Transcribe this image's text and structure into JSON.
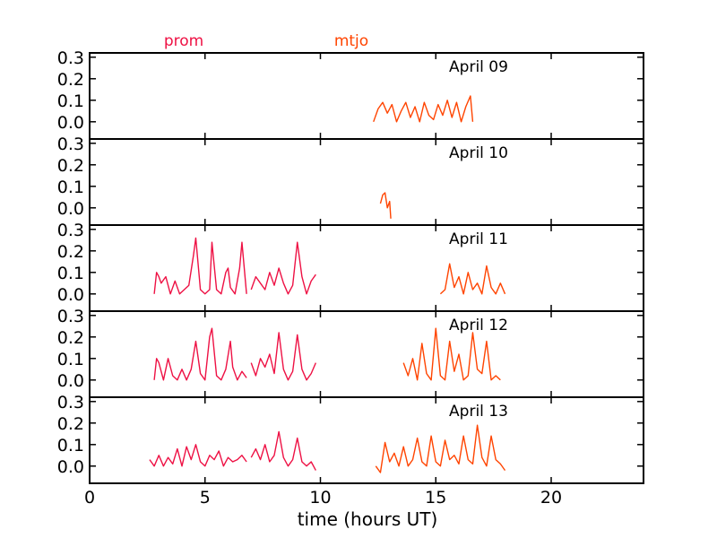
{
  "chart_data": {
    "type": "line",
    "xlabel": "time (hours UT)",
    "xlim": [
      0,
      24
    ],
    "xticks": [
      0,
      5,
      10,
      15,
      20
    ],
    "ylim": [
      -0.08,
      0.32
    ],
    "yticks": [
      0.0,
      0.1,
      0.2,
      0.3
    ],
    "ytick_labels": [
      "0.0",
      "0.1",
      "0.2",
      "0.3"
    ],
    "grid": false,
    "legend": {
      "placement": "top",
      "entries": [
        {
          "name": "prom",
          "color": "#ee1144"
        },
        {
          "name": "mtjo",
          "color": "#ff4400"
        }
      ]
    },
    "panels": [
      {
        "label": "April 09",
        "series": [
          {
            "name": "mtjo",
            "color": "#ff4400",
            "x": [
              12.3,
              12.5,
              12.7,
              12.9,
              13.1,
              13.3,
              13.5,
              13.7,
              13.9,
              14.1,
              14.3,
              14.5,
              14.7,
              14.9,
              15.1,
              15.3,
              15.5,
              15.7,
              15.9,
              16.1,
              16.3,
              16.5,
              16.6
            ],
            "y": [
              0.0,
              0.06,
              0.09,
              0.04,
              0.08,
              0.0,
              0.05,
              0.09,
              0.02,
              0.07,
              0.0,
              0.09,
              0.03,
              0.01,
              0.08,
              0.03,
              0.1,
              0.02,
              0.09,
              0.0,
              0.07,
              0.12,
              0.0
            ]
          }
        ]
      },
      {
        "label": "April 10",
        "series": [
          {
            "name": "mtjo",
            "color": "#ff4400",
            "x": [
              12.6,
              12.7,
              12.8,
              12.9,
              13.0,
              13.05
            ],
            "y": [
              0.02,
              0.06,
              0.07,
              0.0,
              0.03,
              -0.05
            ]
          }
        ]
      },
      {
        "label": "April 11",
        "series": [
          {
            "name": "prom",
            "color": "#ee1144",
            "x": [
              2.8,
              2.9,
              3.0,
              3.1,
              3.3,
              3.5,
              3.7,
              3.9,
              4.1,
              4.3,
              4.5,
              4.6,
              4.8,
              5.0,
              5.2,
              5.3,
              5.5,
              5.7,
              5.9,
              6.0,
              6.1,
              6.3,
              6.5,
              6.6,
              6.8
            ],
            "y": [
              0.0,
              0.1,
              0.08,
              0.05,
              0.08,
              0.0,
              0.06,
              0.0,
              0.02,
              0.04,
              0.18,
              0.26,
              0.02,
              0.0,
              0.02,
              0.24,
              0.02,
              0.0,
              0.1,
              0.12,
              0.03,
              0.0,
              0.12,
              0.24,
              0.0
            ]
          },
          {
            "name": "prom",
            "color": "#ee1144",
            "x": [
              7.0,
              7.2,
              7.4,
              7.6,
              7.8,
              8.0,
              8.2,
              8.4,
              8.6,
              8.8,
              9.0,
              9.2,
              9.4,
              9.6,
              9.8
            ],
            "y": [
              0.02,
              0.08,
              0.05,
              0.02,
              0.1,
              0.04,
              0.12,
              0.05,
              0.0,
              0.04,
              0.24,
              0.08,
              0.0,
              0.06,
              0.09
            ]
          },
          {
            "name": "mtjo",
            "color": "#ff4400",
            "x": [
              15.2,
              15.4,
              15.6,
              15.8,
              16.0,
              16.2,
              16.4,
              16.6,
              16.8,
              17.0,
              17.2,
              17.4,
              17.6,
              17.8,
              18.0
            ],
            "y": [
              0.0,
              0.02,
              0.14,
              0.03,
              0.08,
              0.0,
              0.1,
              0.02,
              0.05,
              0.0,
              0.13,
              0.03,
              0.0,
              0.05,
              0.0
            ]
          }
        ]
      },
      {
        "label": "April 12",
        "series": [
          {
            "name": "prom",
            "color": "#ee1144",
            "x": [
              2.8,
              2.9,
              3.0,
              3.2,
              3.4,
              3.6,
              3.8,
              4.0,
              4.2,
              4.4,
              4.6,
              4.8,
              5.0,
              5.2,
              5.3,
              5.5,
              5.7,
              5.9,
              6.1,
              6.2,
              6.4,
              6.6,
              6.8
            ],
            "y": [
              0.0,
              0.1,
              0.08,
              0.0,
              0.1,
              0.02,
              0.0,
              0.05,
              0.0,
              0.05,
              0.18,
              0.03,
              0.0,
              0.2,
              0.24,
              0.02,
              0.0,
              0.05,
              0.18,
              0.06,
              0.0,
              0.04,
              0.01
            ]
          },
          {
            "name": "prom",
            "color": "#ee1144",
            "x": [
              7.0,
              7.2,
              7.4,
              7.6,
              7.8,
              8.0,
              8.2,
              8.4,
              8.6,
              8.8,
              9.0,
              9.2,
              9.4,
              9.6,
              9.8
            ],
            "y": [
              0.08,
              0.02,
              0.1,
              0.06,
              0.12,
              0.03,
              0.22,
              0.05,
              0.0,
              0.04,
              0.21,
              0.05,
              0.0,
              0.03,
              0.08
            ]
          },
          {
            "name": "mtjo",
            "color": "#ff4400",
            "x": [
              13.6,
              13.8,
              14.0,
              14.2,
              14.4,
              14.6,
              14.8,
              15.0,
              15.2,
              15.4,
              15.6,
              15.8,
              16.0,
              16.2,
              16.4,
              16.6,
              16.8,
              17.0,
              17.2,
              17.4,
              17.6,
              17.8
            ],
            "y": [
              0.08,
              0.02,
              0.1,
              0.0,
              0.17,
              0.03,
              0.0,
              0.24,
              0.02,
              0.0,
              0.18,
              0.04,
              0.12,
              0.0,
              0.02,
              0.22,
              0.05,
              0.03,
              0.18,
              0.0,
              0.02,
              0.0
            ]
          }
        ]
      },
      {
        "label": "April 13",
        "series": [
          {
            "name": "prom",
            "color": "#ee1144",
            "x": [
              2.6,
              2.8,
              3.0,
              3.2,
              3.4,
              3.6,
              3.8,
              4.0,
              4.2,
              4.4,
              4.6,
              4.8,
              5.0,
              5.2,
              5.4,
              5.6,
              5.8,
              6.0,
              6.2,
              6.4,
              6.6,
              6.8
            ],
            "y": [
              0.03,
              0.0,
              0.05,
              0.0,
              0.04,
              0.01,
              0.08,
              0.0,
              0.09,
              0.03,
              0.1,
              0.02,
              0.0,
              0.05,
              0.03,
              0.07,
              0.0,
              0.04,
              0.02,
              0.03,
              0.05,
              0.02
            ]
          },
          {
            "name": "prom",
            "color": "#ee1144",
            "x": [
              7.0,
              7.2,
              7.4,
              7.6,
              7.8,
              8.0,
              8.2,
              8.4,
              8.6,
              8.8,
              9.0,
              9.2,
              9.4,
              9.6,
              9.8
            ],
            "y": [
              0.04,
              0.08,
              0.03,
              0.1,
              0.02,
              0.05,
              0.16,
              0.04,
              0.0,
              0.03,
              0.13,
              0.02,
              0.0,
              0.02,
              -0.02
            ]
          },
          {
            "name": "mtjo",
            "color": "#ff4400",
            "x": [
              12.4,
              12.6,
              12.8,
              13.0,
              13.2,
              13.4,
              13.6,
              13.8,
              14.0,
              14.2,
              14.4,
              14.6,
              14.8,
              15.0,
              15.2,
              15.4,
              15.6,
              15.8,
              16.0,
              16.2,
              16.4,
              16.6,
              16.8,
              17.0,
              17.2,
              17.4,
              17.6,
              17.8,
              18.0
            ],
            "y": [
              0.0,
              -0.03,
              0.11,
              0.02,
              0.06,
              0.0,
              0.09,
              0.0,
              0.03,
              0.13,
              0.02,
              0.0,
              0.14,
              0.02,
              0.0,
              0.12,
              0.03,
              0.05,
              0.01,
              0.14,
              0.03,
              0.01,
              0.19,
              0.04,
              0.0,
              0.14,
              0.03,
              0.01,
              -0.02
            ]
          }
        ]
      }
    ]
  }
}
